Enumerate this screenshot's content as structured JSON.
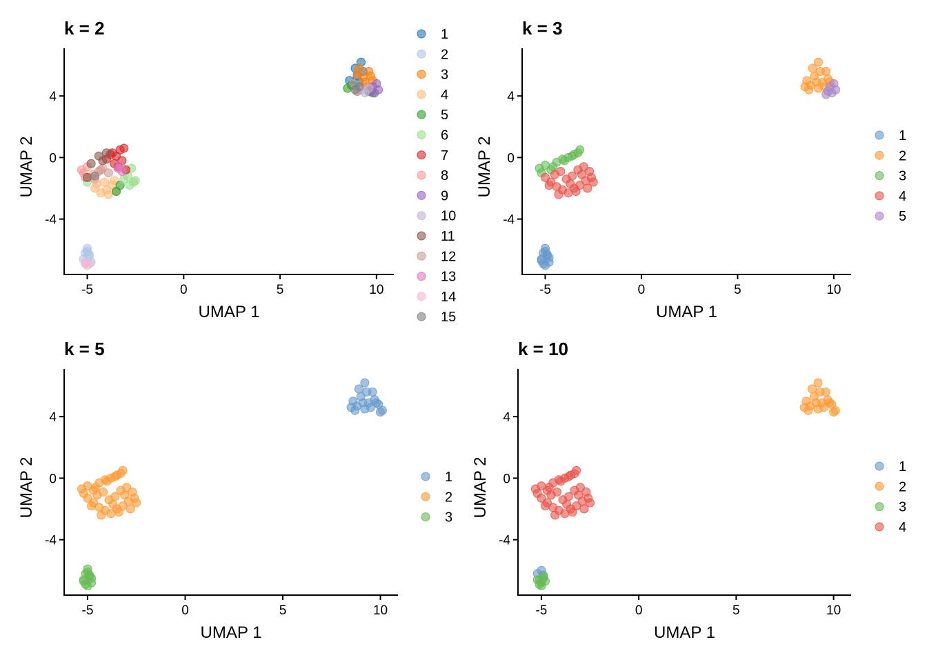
{
  "palette": [
    "#1f77b4",
    "#aec7e8",
    "#ff7f0e",
    "#ffbb78",
    "#2ca02c",
    "#98df8a",
    "#d62728",
    "#ff9896",
    "#9467bd",
    "#c5b0d5",
    "#8c564b",
    "#c49c94",
    "#e377c2",
    "#f7b6d2",
    "#7f7f7f"
  ],
  "chart_data": [
    {
      "type": "scatter",
      "title": "k = 2",
      "xlabel": "UMAP 1",
      "ylabel": "UMAP 2",
      "xlim": [
        -6.2,
        10.9
      ],
      "ylim": [
        -7.6,
        7.1
      ],
      "xticks": [
        -5,
        0,
        5,
        10
      ],
      "yticks": [
        -4,
        0,
        4
      ],
      "tick_labels_x": [
        "-5",
        "0",
        "5",
        "10"
      ],
      "tick_labels_y": [
        "-4",
        "0",
        "4"
      ],
      "legend": [
        "1",
        "2",
        "3",
        "4",
        "5",
        "6",
        "7",
        "8",
        "9",
        "10",
        "11",
        "12",
        "13",
        "14",
        "15"
      ],
      "legend_position": "right",
      "series": [
        {
          "name": "1",
          "x": [
            9.2,
            8.9,
            8.6,
            9.3,
            8.8,
            9.1,
            9.0
          ],
          "y": [
            6.2,
            5.8,
            5.0,
            5.6,
            4.7,
            4.9,
            5.3
          ]
        },
        {
          "name": "2",
          "x": [
            -5.1,
            -4.9,
            -5.2,
            -5.0,
            -4.8,
            -5.1,
            -4.9,
            -5.0
          ],
          "y": [
            -6.2,
            -6.4,
            -6.6,
            -6.1,
            -6.8,
            -6.9,
            -6.3,
            -5.9
          ]
        },
        {
          "name": "3",
          "x": [
            9.3,
            9.6,
            9.4,
            9.0,
            9.5,
            9.8,
            9.7,
            9.1
          ],
          "y": [
            5.2,
            5.6,
            4.9,
            5.4,
            4.6,
            5.0,
            5.3,
            5.8
          ]
        },
        {
          "name": "4",
          "x": [
            -4.6,
            -4.3,
            -4.0,
            -3.7,
            -3.5,
            -4.1,
            -4.5,
            -3.9,
            -3.6
          ],
          "y": [
            -2.0,
            -2.3,
            -2.1,
            -1.8,
            -2.2,
            -1.6,
            -1.7,
            -2.4,
            -1.5
          ]
        },
        {
          "name": "5",
          "x": [
            8.5,
            8.7,
            9.6,
            -3.5,
            -3.3,
            9.8
          ],
          "y": [
            4.5,
            4.7,
            4.3,
            -2.2,
            -1.8,
            4.2
          ]
        },
        {
          "name": "6",
          "x": [
            -2.9,
            -2.6,
            -2.8,
            -3.1,
            -5.0,
            -4.8,
            -3.0,
            -2.7,
            -2.5
          ],
          "y": [
            -1.2,
            -1.6,
            -1.8,
            -1.4,
            -1.6,
            -1.3,
            -0.8,
            -0.7,
            -1.5
          ]
        },
        {
          "name": "7",
          "x": [
            -3.8,
            -3.5,
            -3.3,
            -3.2,
            -3.6,
            -4.0,
            -3.1,
            -3.4,
            -3.0,
            -3.7
          ],
          "y": [
            0.2,
            0.1,
            0.5,
            -0.2,
            -0.4,
            -0.1,
            0.6,
            -0.6,
            -0.8,
            0.3
          ]
        },
        {
          "name": "8",
          "x": [
            -5.3,
            -5.0,
            -4.7,
            -4.4,
            -5.1,
            -4.2,
            -4.6,
            -5.2
          ],
          "y": [
            -0.8,
            -0.6,
            -1.1,
            -0.9,
            -1.3,
            -0.7,
            -1.4,
            -1.0
          ]
        },
        {
          "name": "9",
          "x": [
            9.8,
            10.1,
            9.9,
            10.0,
            9.7
          ],
          "y": [
            4.6,
            4.4,
            4.2,
            4.8,
            4.3
          ]
        },
        {
          "name": "10",
          "x": [
            9.2,
            9.4,
            9.6,
            9.0
          ],
          "y": [
            4.4,
            4.2,
            4.5,
            4.3
          ]
        },
        {
          "name": "11",
          "x": [
            -4.4,
            -4.2,
            -4.0,
            -4.8,
            -5.0
          ],
          "y": [
            0.1,
            -0.2,
            0.3,
            -0.4,
            -1.3
          ]
        },
        {
          "name": "12",
          "x": [
            9.0,
            8.8,
            -3.9,
            -4.3
          ],
          "y": [
            4.3,
            4.8,
            -1.0,
            -0.8
          ]
        },
        {
          "name": "13",
          "x": [
            -3.4,
            -3.3,
            -3.2
          ],
          "y": [
            -0.7,
            -0.5,
            -0.9
          ]
        },
        {
          "name": "14",
          "x": [
            -5.1,
            -5.0,
            -4.9
          ],
          "y": [
            -6.8,
            -7.0,
            -6.9
          ]
        },
        {
          "name": "15",
          "x": [
            8.9,
            9.1,
            -4.6
          ],
          "y": [
            4.4,
            4.6,
            -1.2
          ]
        }
      ]
    },
    {
      "type": "scatter",
      "title": "k = 3",
      "xlabel": "UMAP 1",
      "ylabel": "UMAP 2",
      "xlim": [
        -6.2,
        10.9
      ],
      "ylim": [
        -7.6,
        7.1
      ],
      "xticks": [
        -5,
        0,
        5,
        10
      ],
      "yticks": [
        -4,
        0,
        4
      ],
      "tick_labels_x": [
        "-5",
        "0",
        "5",
        "10"
      ],
      "tick_labels_y": [
        "-4",
        "0",
        "4"
      ],
      "legend": [
        "1",
        "2",
        "3",
        "4",
        "5"
      ],
      "legend_position": "right",
      "series": [
        {
          "name": "1",
          "x": [
            -5.1,
            -4.9,
            -5.2,
            -5.0,
            -4.8,
            -5.1,
            -4.9,
            -5.0,
            -5.2,
            -4.8,
            -5.0
          ],
          "y": [
            -6.2,
            -6.4,
            -6.6,
            -6.1,
            -6.8,
            -6.9,
            -6.3,
            -5.9,
            -6.7,
            -6.5,
            -7.0
          ]
        },
        {
          "name": "2",
          "x": [
            9.2,
            8.9,
            8.6,
            9.3,
            8.8,
            9.1,
            9.0,
            9.6,
            9.4,
            9.5,
            9.7,
            8.7,
            9.2,
            9.8,
            8.5
          ],
          "y": [
            6.2,
            5.8,
            5.0,
            5.6,
            4.7,
            4.9,
            5.3,
            5.6,
            4.9,
            4.6,
            5.1,
            4.4,
            4.5,
            4.9,
            4.6
          ]
        },
        {
          "name": "3",
          "x": [
            -5.3,
            -5.0,
            -4.7,
            -4.4,
            -4.1,
            -3.8,
            -3.5,
            -3.2,
            -3.6,
            -4.0,
            -4.6,
            -5.2,
            -3.3
          ],
          "y": [
            -0.7,
            -0.5,
            -0.8,
            -0.3,
            -0.1,
            0.0,
            0.2,
            0.5,
            0.1,
            -0.2,
            -0.6,
            -1.0,
            0.3
          ]
        },
        {
          "name": "4",
          "x": [
            -5.0,
            -4.7,
            -4.4,
            -4.1,
            -3.8,
            -3.5,
            -3.2,
            -2.9,
            -2.6,
            -2.5,
            -4.5,
            -4.2,
            -3.9,
            -3.6,
            -3.3,
            -3.0,
            -2.7,
            -4.8,
            -4.3,
            -3.7,
            -3.4,
            -3.1,
            -2.8
          ],
          "y": [
            -1.3,
            -1.6,
            -1.9,
            -2.1,
            -2.3,
            -2.0,
            -1.8,
            -1.5,
            -1.3,
            -1.6,
            -1.1,
            -0.9,
            -1.4,
            -1.2,
            -0.8,
            -0.6,
            -0.9,
            -1.8,
            -2.4,
            -1.7,
            -2.2,
            -1.1,
            -2.0
          ]
        },
        {
          "name": "5",
          "x": [
            9.8,
            10.1,
            9.9,
            10.0,
            9.7,
            9.6
          ],
          "y": [
            4.6,
            4.4,
            4.2,
            4.8,
            4.3,
            4.1
          ]
        }
      ]
    },
    {
      "type": "scatter",
      "title": "k = 5",
      "xlabel": "UMAP 1",
      "ylabel": "UMAP 2",
      "xlim": [
        -6.2,
        10.9
      ],
      "ylim": [
        -7.6,
        7.1
      ],
      "xticks": [
        -5,
        0,
        5,
        10
      ],
      "yticks": [
        -4,
        0,
        4
      ],
      "tick_labels_x": [
        "-5",
        "0",
        "5",
        "10"
      ],
      "tick_labels_y": [
        "-4",
        "0",
        "4"
      ],
      "legend": [
        "1",
        "2",
        "3"
      ],
      "legend_position": "right",
      "series": [
        {
          "name": "1",
          "x": [
            9.2,
            8.9,
            8.6,
            9.3,
            8.8,
            9.1,
            9.0,
            9.6,
            9.4,
            9.5,
            9.7,
            8.7,
            9.2,
            9.8,
            8.5,
            10.0,
            9.9,
            10.1
          ],
          "y": [
            6.2,
            5.8,
            5.0,
            5.6,
            4.7,
            4.9,
            5.3,
            5.6,
            4.9,
            4.6,
            5.1,
            4.4,
            4.5,
            4.9,
            4.6,
            4.3,
            4.8,
            4.4
          ]
        },
        {
          "name": "2",
          "x": [
            -5.3,
            -5.0,
            -4.7,
            -4.4,
            -4.1,
            -3.8,
            -3.5,
            -3.2,
            -3.6,
            -4.0,
            -4.6,
            -5.2,
            -3.3,
            -5.0,
            -4.7,
            -4.4,
            -4.1,
            -3.8,
            -3.5,
            -3.2,
            -2.9,
            -2.6,
            -2.5,
            -4.5,
            -4.2,
            -3.9,
            -3.6,
            -3.3,
            -3.0,
            -2.7,
            -4.8,
            -4.3,
            -3.7,
            -3.4,
            -3.1,
            -2.8
          ],
          "y": [
            -0.7,
            -0.5,
            -0.8,
            -0.3,
            -0.1,
            0.0,
            0.2,
            0.5,
            0.1,
            -0.2,
            -0.6,
            -1.0,
            0.3,
            -1.3,
            -1.6,
            -1.9,
            -2.1,
            -2.3,
            -2.0,
            -1.8,
            -1.5,
            -1.3,
            -1.6,
            -1.1,
            -0.9,
            -1.4,
            -1.2,
            -0.8,
            -0.6,
            -0.9,
            -1.8,
            -2.4,
            -1.7,
            -2.2,
            -1.1,
            -2.0
          ]
        },
        {
          "name": "3",
          "x": [
            -5.1,
            -4.9,
            -5.2,
            -5.0,
            -4.8,
            -5.1,
            -4.9,
            -5.0,
            -5.2,
            -4.8,
            -5.0
          ],
          "y": [
            -6.2,
            -6.4,
            -6.6,
            -6.1,
            -6.8,
            -6.9,
            -6.3,
            -5.9,
            -6.7,
            -6.5,
            -7.0
          ]
        }
      ]
    },
    {
      "type": "scatter",
      "title": "k = 10",
      "xlabel": "UMAP 1",
      "ylabel": "UMAP 2",
      "xlim": [
        -6.2,
        10.9
      ],
      "ylim": [
        -7.6,
        7.1
      ],
      "xticks": [
        -5,
        0,
        5,
        10
      ],
      "yticks": [
        -4,
        0,
        4
      ],
      "tick_labels_x": [
        "-5",
        "0",
        "5",
        "10"
      ],
      "tick_labels_y": [
        "-4",
        "0",
        "4"
      ],
      "legend": [
        "1",
        "2",
        "3",
        "4"
      ],
      "legend_position": "right",
      "series": [
        {
          "name": "1",
          "x": [
            -5.2,
            -5.0,
            -4.9
          ],
          "y": [
            -6.2,
            -6.0,
            -6.3
          ]
        },
        {
          "name": "2",
          "x": [
            9.2,
            8.9,
            8.6,
            9.3,
            8.8,
            9.1,
            9.0,
            9.6,
            9.4,
            9.5,
            9.7,
            8.7,
            9.2,
            9.8,
            8.5,
            10.0,
            9.9,
            10.1
          ],
          "y": [
            6.2,
            5.8,
            5.0,
            5.6,
            4.7,
            4.9,
            5.3,
            5.6,
            4.9,
            4.6,
            5.1,
            4.4,
            4.5,
            4.9,
            4.6,
            4.3,
            4.8,
            4.4
          ]
        },
        {
          "name": "3",
          "x": [
            -5.1,
            -4.9,
            -5.0,
            -4.8,
            -5.1,
            -4.9,
            -5.0,
            -5.2
          ],
          "y": [
            -6.6,
            -6.4,
            -6.8,
            -6.7,
            -6.9,
            -6.5,
            -7.0,
            -6.6
          ]
        },
        {
          "name": "4",
          "x": [
            -5.3,
            -5.0,
            -4.7,
            -4.4,
            -4.1,
            -3.8,
            -3.5,
            -3.2,
            -3.6,
            -4.0,
            -4.6,
            -5.2,
            -3.3,
            -5.0,
            -4.7,
            -4.4,
            -4.1,
            -3.8,
            -3.5,
            -3.2,
            -2.9,
            -2.6,
            -2.5,
            -4.5,
            -4.2,
            -3.9,
            -3.6,
            -3.3,
            -3.0,
            -2.7,
            -4.8,
            -4.3,
            -3.7,
            -3.4,
            -3.1,
            -2.8
          ],
          "y": [
            -0.7,
            -0.5,
            -0.8,
            -0.3,
            -0.1,
            0.0,
            0.2,
            0.5,
            0.1,
            -0.2,
            -0.6,
            -1.0,
            0.3,
            -1.3,
            -1.6,
            -1.9,
            -2.1,
            -2.3,
            -2.0,
            -1.8,
            -1.5,
            -1.3,
            -1.6,
            -1.1,
            -0.9,
            -1.4,
            -1.2,
            -0.8,
            -0.6,
            -0.9,
            -1.8,
            -2.4,
            -1.7,
            -2.2,
            -1.1,
            -2.0
          ]
        }
      ]
    }
  ]
}
